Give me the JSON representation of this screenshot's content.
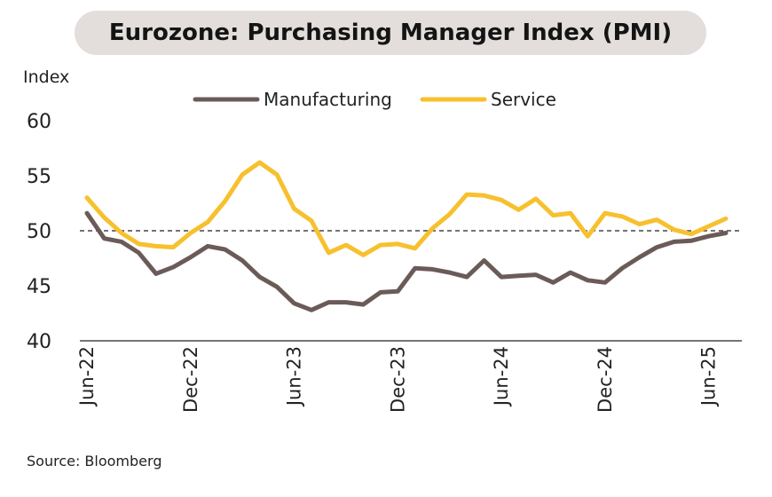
{
  "chart_data": {
    "type": "line",
    "title": "Eurozone: Purchasing Manager Index (PMI)",
    "ylabel": "Index",
    "ylim": [
      40,
      60
    ],
    "yticks": [
      "40",
      "45",
      "50",
      "55",
      "60"
    ],
    "reference_line": 50,
    "xtick_labels": [
      {
        "index": 0,
        "label": "Jun-22"
      },
      {
        "index": 6,
        "label": "Dec-22"
      },
      {
        "index": 12,
        "label": "Jun-23"
      },
      {
        "index": 18,
        "label": "Dec-23"
      },
      {
        "index": 24,
        "label": "Jun-24"
      },
      {
        "index": 30,
        "label": "Dec-24"
      },
      {
        "index": 36,
        "label": "Jun-25"
      }
    ],
    "legend_position": "top",
    "series": [
      {
        "name": "Manufacturing",
        "color": "#6b5b58",
        "values": [
          51.6,
          49.3,
          49.0,
          48.0,
          46.1,
          46.7,
          47.6,
          48.6,
          48.3,
          47.3,
          45.8,
          44.9,
          43.4,
          42.8,
          43.5,
          43.5,
          43.3,
          44.4,
          44.5,
          46.6,
          46.5,
          46.2,
          45.8,
          47.3,
          45.8,
          45.9,
          46.0,
          45.3,
          46.2,
          45.5,
          45.3,
          46.6,
          47.6,
          48.5,
          49.0,
          49.1,
          49.5,
          49.8
        ]
      },
      {
        "name": "Service",
        "color": "#f7c02e",
        "values": [
          53.0,
          51.2,
          49.8,
          48.8,
          48.6,
          48.5,
          49.8,
          50.8,
          52.7,
          55.1,
          56.2,
          55.1,
          52.0,
          50.9,
          48.0,
          48.7,
          47.8,
          48.7,
          48.8,
          48.4,
          50.2,
          51.5,
          53.3,
          53.2,
          52.8,
          51.9,
          52.9,
          51.4,
          51.6,
          49.5,
          51.6,
          51.3,
          50.6,
          51.0,
          50.1,
          49.7,
          50.4,
          51.1
        ]
      }
    ]
  },
  "source": "Source: Bloomberg"
}
